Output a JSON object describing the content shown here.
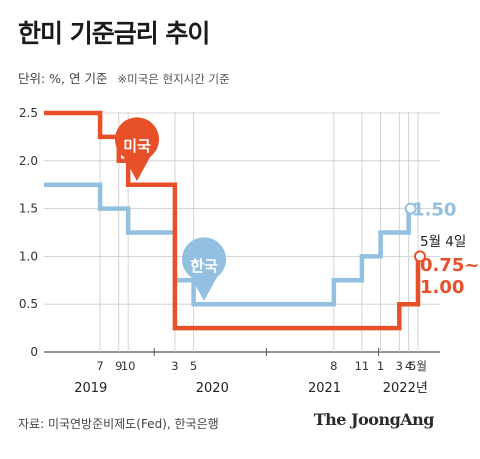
{
  "title": "한미 기준금리 추이",
  "subtitle": "단위: %, 연 기준",
  "note": "※미국은 현지시간 기준",
  "source": "자료: 미국연방준비제도(Fed), 한국은행",
  "brand": "The JoongAng",
  "colors": {
    "us": "#e8502a",
    "korea": "#93c0e0",
    "grid": "#c9c9c9",
    "axis": "#555555"
  },
  "chart_data": {
    "type": "line",
    "title": "한미 기준금리 추이",
    "ylabel": "%",
    "ylim": [
      0,
      2.5
    ],
    "yticks": [
      "0",
      "0.5",
      "1.0",
      "1.5",
      "2.0",
      "2.5"
    ],
    "month_ticks": [
      "7",
      "9",
      "10",
      "3",
      "5",
      "8",
      "11",
      "1",
      "3",
      "4",
      "5월"
    ],
    "year_labels": [
      "2019",
      "2020",
      "2021",
      "2022년"
    ],
    "annotation_date": "5월 4일",
    "series": [
      {
        "name": "미국",
        "color": "#e8502a",
        "end_label_1": "0.75~",
        "end_label_2": "1.00",
        "points": [
          [
            "2019-01",
            2.5
          ],
          [
            "2019-07",
            2.25
          ],
          [
            "2019-09",
            2.0
          ],
          [
            "2019-10",
            1.75
          ],
          [
            "2020-03",
            0.25
          ],
          [
            "2022-03",
            0.5
          ],
          [
            "2022-05",
            1.0
          ]
        ]
      },
      {
        "name": "한국",
        "color": "#93c0e0",
        "end_label": "1.50",
        "points": [
          [
            "2019-01",
            1.75
          ],
          [
            "2019-07",
            1.5
          ],
          [
            "2019-10",
            1.25
          ],
          [
            "2020-03",
            0.75
          ],
          [
            "2020-05",
            0.5
          ],
          [
            "2021-08",
            0.75
          ],
          [
            "2021-11",
            1.0
          ],
          [
            "2022-01",
            1.25
          ],
          [
            "2022-04",
            1.5
          ]
        ]
      }
    ]
  }
}
